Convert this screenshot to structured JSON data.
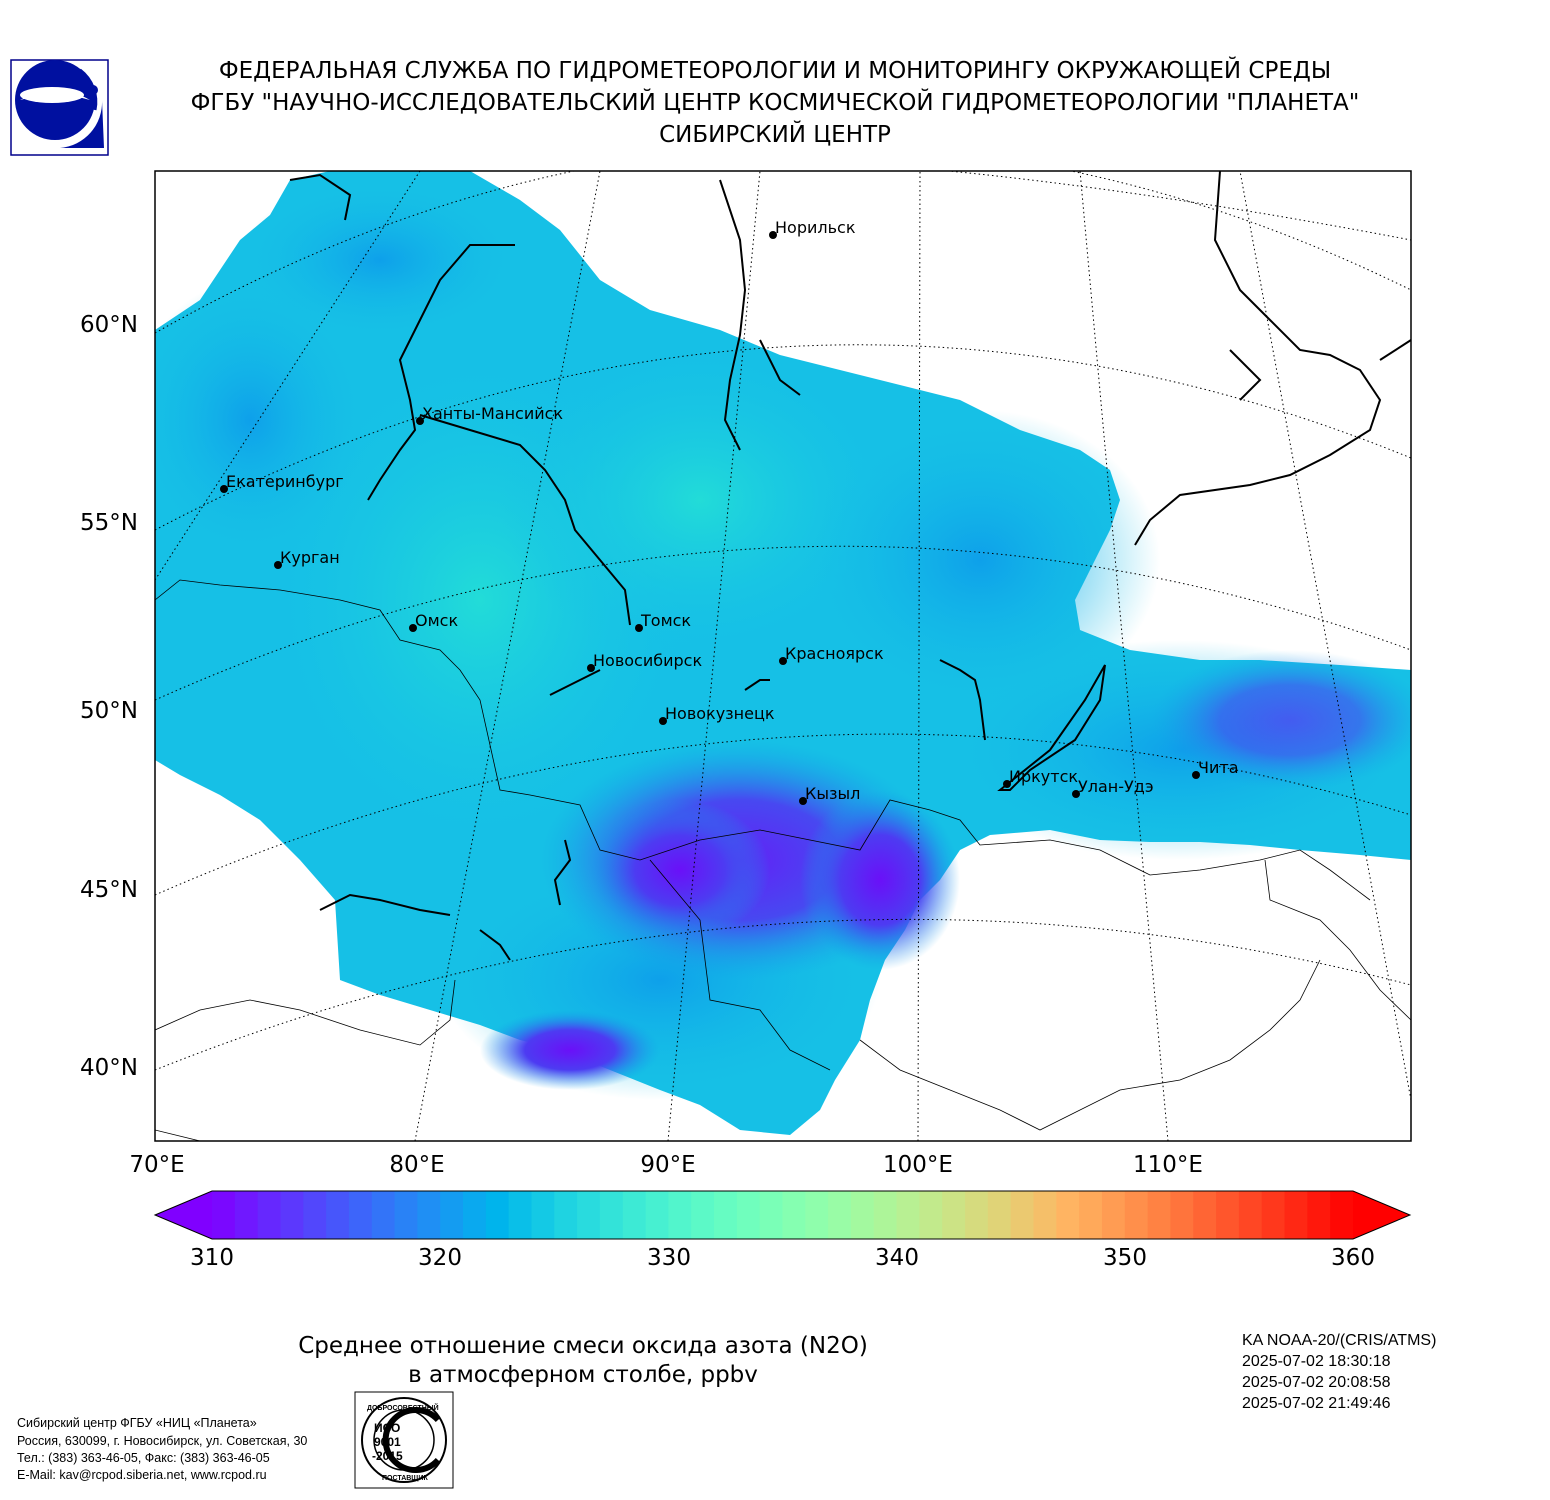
{
  "header": {
    "line1": "ФЕДЕРАЛЬНАЯ СЛУЖБА ПО ГИДРОМЕТЕОРОЛОГИИ И МОНИТОРИНГУ ОКРУЖАЮЩЕЙ СРЕДЫ",
    "line2": "ФГБУ \"НАУЧНО-ИССЛЕДОВАТЕЛЬСКИЙ ЦЕНТР КОСМИЧЕСКОЙ ГИДРОМЕТЕОРОЛОГИИ \"ПЛАНЕТА\"",
    "line3": "СИБИРСКИЙ ЦЕНТР"
  },
  "map": {
    "lat_labels": [
      "60°N",
      "55°N",
      "50°N",
      "45°N",
      "40°N"
    ],
    "lon_labels": [
      "70°E",
      "80°E",
      "90°E",
      "100°E",
      "110°E"
    ],
    "cities": [
      "Норильск",
      "Ханты-Мансийск",
      "Екатеринбург",
      "Курган",
      "Омск",
      "Томск",
      "Новосибирск",
      "Красноярск",
      "Новокузнецк",
      "Иркутск",
      "Улан-Удэ",
      "Чита",
      "Кызыл"
    ]
  },
  "colorbar": {
    "ticks": [
      "310",
      "320",
      "330",
      "340",
      "350",
      "360"
    ],
    "min": 310,
    "max": 360,
    "extend": "both",
    "colormap": "rainbow"
  },
  "title": {
    "line1": "Среднее отношение смеси оксида азота (N2O)",
    "line2": "в атмосферном столбе, ppbv"
  },
  "satellite": {
    "name": "KA NOAA-20/(CRIS/ATMS)",
    "times": [
      "2025-07-02 18:30:18",
      "2025-07-02 20:08:58",
      "2025-07-02 21:49:46"
    ]
  },
  "contact": {
    "line1": "Сибирский центр ФГБУ «НИЦ «Планета»",
    "line2": "Россия, 630099, г. Новосибирск, ул. Советская, 30",
    "line3": "Тел.: (383) 363-46-05, Факс: (383) 363-46-05",
    "line4": "E-Mail: kav@rcpod.siberia.net, www.rcpod.ru"
  },
  "iso_stamp": {
    "top": "ДОБРОСОВЕСТНЫЙ",
    "center1": "ИСО",
    "center2": "9001",
    "center3": "-2015",
    "bottom": "ПОСТАВЩИК"
  },
  "colors": {
    "swath_main": "#16c0e6",
    "swath_light": "#1fd6dc",
    "swath_blue": "#109fe8",
    "swath_violet": "#4a3af0",
    "swath_deep": "#7000f8"
  }
}
